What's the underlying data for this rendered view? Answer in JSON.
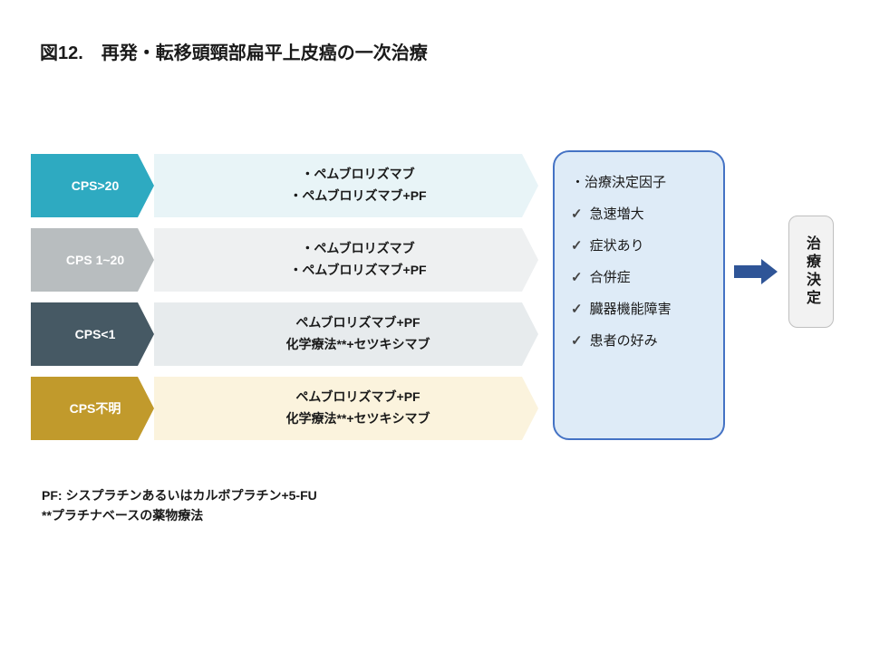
{
  "title": "図12.　再発・転移頭頸部扁平上皮癌の一次治療",
  "rows": [
    {
      "label": "CPS>20",
      "label_bg": "#2eaac1",
      "treat_bg": "#e8f4f7",
      "lines": [
        "・ペムブロリズマブ",
        "・ペムブロリズマブ+PF"
      ]
    },
    {
      "label": "CPS 1~20",
      "label_bg": "#b8bdbf",
      "treat_bg": "#eef0f1",
      "lines": [
        "・ペムブロリズマブ",
        "・ペムブロリズマブ+PF"
      ]
    },
    {
      "label": "CPS<1",
      "label_bg": "#465964",
      "treat_bg": "#e7ebed",
      "lines": [
        "ペムブロリズマブ+PF",
        "化学療法**+セツキシマブ"
      ]
    },
    {
      "label": "CPS不明",
      "label_bg": "#c19a2c",
      "treat_bg": "#fbf3dd",
      "lines": [
        "ペムブロリズマブ+PF",
        "化学療法**+セツキシマブ"
      ]
    }
  ],
  "factors": {
    "bg": "#deebf7",
    "border": "#4472c4",
    "head_bullet": "・",
    "head": "治療決定因子",
    "items": [
      "急速増大",
      "症状あり",
      "合併症",
      "臓器機能障害",
      "患者の好み"
    ]
  },
  "arrow_color": "#2f5597",
  "decision": {
    "bg": "#f2f2f2",
    "border": "#bfbfbf",
    "text": "治療決定"
  },
  "footnote": {
    "l1": "PF: シスプラチンあるいはカルボプラチン+5-FU",
    "l2": " **プラチナベースの薬物療法"
  }
}
